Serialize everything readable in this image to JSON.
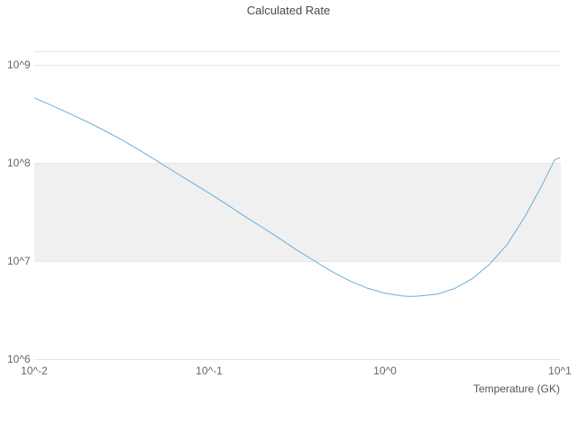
{
  "chart_data": {
    "type": "line",
    "title": "Calculated Rate",
    "xlabel": "Temperature (GK)",
    "ylabel": "",
    "x_scale": "log",
    "y_scale": "log",
    "xlim": [
      0.01,
      10
    ],
    "ylim": [
      1000000,
      1000000000
    ],
    "x_tick_labels": [
      "10^-2",
      "10^-1",
      "10^0",
      "10^1"
    ],
    "y_tick_labels": [
      "10^6",
      "10^7",
      "10^8",
      "10^9"
    ],
    "grid": "horizontal",
    "legend": "none",
    "line_color": "#6baed6",
    "band": {
      "from": 10000000,
      "to": 100000000,
      "color": "#f0f0f0"
    },
    "series": [
      {
        "name": "Calculated Rate",
        "x": [
          0.01,
          0.0126,
          0.0158,
          0.02,
          0.0251,
          0.0316,
          0.0398,
          0.0501,
          0.0631,
          0.0794,
          0.1,
          0.126,
          0.158,
          0.2,
          0.251,
          0.316,
          0.398,
          0.501,
          0.631,
          0.794,
          1.0,
          1.26,
          1.41,
          1.58,
          2.0,
          2.51,
          3.16,
          3.98,
          5.01,
          6.31,
          7.94,
          9.33,
          10.0
        ],
        "y": [
          460000000.0,
          385000000.0,
          320000000.0,
          263000000.0,
          214000000.0,
          172000000.0,
          135000000.0,
          105000000.0,
          81000000.0,
          63000000.0,
          49000000.0,
          37600000.0,
          28800000.0,
          22100000.0,
          17000000.0,
          12900000.0,
          10000000.0,
          7800000.0,
          6300000.0,
          5300000.0,
          4700000.0,
          4400000.0,
          4350000.0,
          4400000.0,
          4600000.0,
          5250000.0,
          6600000.0,
          9300000.0,
          14800000.0,
          28200000.0,
          60000000.0,
          107000000.0,
          113000000.0
        ]
      }
    ]
  }
}
